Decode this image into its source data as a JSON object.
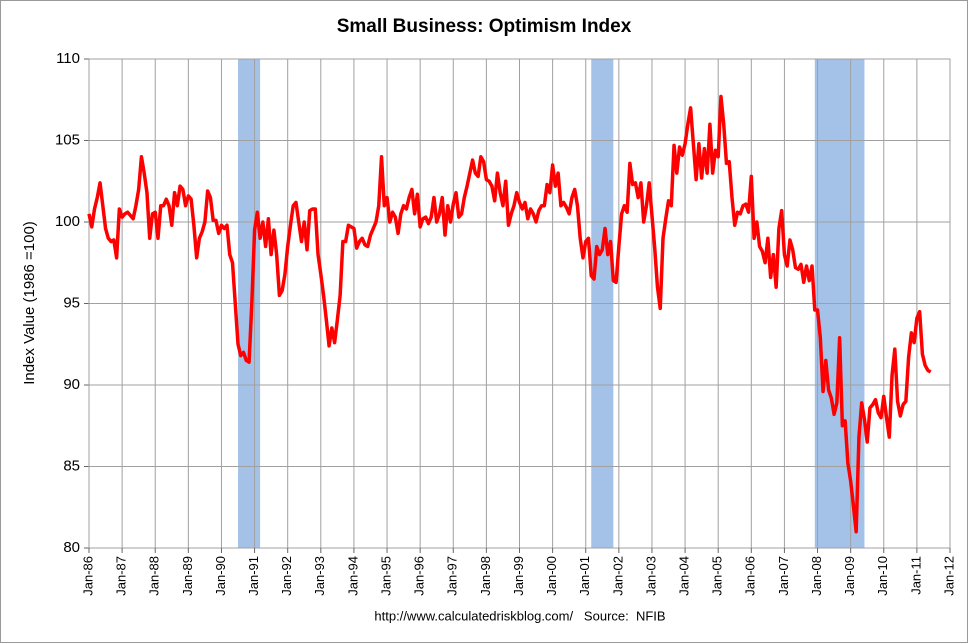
{
  "chart_data": {
    "type": "line",
    "title": "Small Business: Optimism Index",
    "ylabel": "Index Value (1986 =100)",
    "source": "http://www.calculatedriskblog.com/   Source:  NFIB",
    "ylim": [
      80,
      110
    ],
    "yticks": [
      80,
      85,
      90,
      95,
      100,
      105,
      110
    ],
    "xlim": [
      "1986-01",
      "2012-01"
    ],
    "xticks": [
      {
        "value": "1986-01",
        "label": "Jan-86"
      },
      {
        "value": "1987-01",
        "label": "Jan-87"
      },
      {
        "value": "1988-01",
        "label": "Jan-88"
      },
      {
        "value": "1989-01",
        "label": "Jan-89"
      },
      {
        "value": "1990-01",
        "label": "Jan-90"
      },
      {
        "value": "1991-01",
        "label": "Jan-91"
      },
      {
        "value": "1992-01",
        "label": "Jan-92"
      },
      {
        "value": "1993-01",
        "label": "Jan-93"
      },
      {
        "value": "1994-01",
        "label": "Jan-94"
      },
      {
        "value": "1995-01",
        "label": "Jan-95"
      },
      {
        "value": "1996-01",
        "label": "Jan-96"
      },
      {
        "value": "1997-01",
        "label": "Jan-97"
      },
      {
        "value": "1998-01",
        "label": "Jan-98"
      },
      {
        "value": "1999-01",
        "label": "Jan-99"
      },
      {
        "value": "2000-01",
        "label": "Jan-00"
      },
      {
        "value": "2001-01",
        "label": "Jan-01"
      },
      {
        "value": "2002-01",
        "label": "Jan-02"
      },
      {
        "value": "2003-01",
        "label": "Jan-03"
      },
      {
        "value": "2004-01",
        "label": "Jan-04"
      },
      {
        "value": "2005-01",
        "label": "Jan-05"
      },
      {
        "value": "2006-01",
        "label": "Jan-06"
      },
      {
        "value": "2007-01",
        "label": "Jan-07"
      },
      {
        "value": "2008-01",
        "label": "Jan-08"
      },
      {
        "value": "2009-01",
        "label": "Jan-09"
      },
      {
        "value": "2010-01",
        "label": "Jan-10"
      },
      {
        "value": "2011-01",
        "label": "Jan-11"
      },
      {
        "value": "2012-01",
        "label": "Jan-12"
      }
    ],
    "grid": true,
    "recession_color": "#a4c2e8",
    "recessions": [
      {
        "start": "1990-07",
        "end": "1991-03"
      },
      {
        "start": "2001-03",
        "end": "2001-11"
      },
      {
        "start": "2007-12",
        "end": "2009-06"
      }
    ],
    "x": [
      "1986-01",
      "1986-02",
      "1986-03",
      "1986-04",
      "1986-05",
      "1986-06",
      "1986-07",
      "1986-08",
      "1986-09",
      "1986-10",
      "1986-11",
      "1986-12",
      "1987-01",
      "1987-02",
      "1987-03",
      "1987-04",
      "1987-05",
      "1987-06",
      "1987-07",
      "1987-08",
      "1987-09",
      "1987-10",
      "1987-11",
      "1987-12",
      "1988-01",
      "1988-02",
      "1988-03",
      "1988-04",
      "1988-05",
      "1988-06",
      "1988-07",
      "1988-08",
      "1988-09",
      "1988-10",
      "1988-11",
      "1988-12",
      "1989-01",
      "1989-02",
      "1989-03",
      "1989-04",
      "1989-05",
      "1989-06",
      "1989-07",
      "1989-08",
      "1989-09",
      "1989-10",
      "1989-11",
      "1989-12",
      "1990-01",
      "1990-02",
      "1990-03",
      "1990-04",
      "1990-05",
      "1990-06",
      "1990-07",
      "1990-08",
      "1990-09",
      "1990-10",
      "1990-11",
      "1990-12",
      "1991-01",
      "1991-02",
      "1991-03",
      "1991-04",
      "1991-05",
      "1991-06",
      "1991-07",
      "1991-08",
      "1991-09",
      "1991-10",
      "1991-11",
      "1991-12",
      "1992-01",
      "1992-02",
      "1992-03",
      "1992-04",
      "1992-05",
      "1992-06",
      "1992-07",
      "1992-08",
      "1992-09",
      "1992-10",
      "1992-11",
      "1992-12",
      "1993-01",
      "1993-02",
      "1993-03",
      "1993-04",
      "1993-05",
      "1993-06",
      "1993-07",
      "1993-08",
      "1993-09",
      "1993-10",
      "1993-11",
      "1993-12",
      "1994-01",
      "1994-02",
      "1994-03",
      "1994-04",
      "1994-05",
      "1994-06",
      "1994-07",
      "1994-08",
      "1994-09",
      "1994-10",
      "1994-11",
      "1994-12",
      "1995-01",
      "1995-02",
      "1995-03",
      "1995-04",
      "1995-05",
      "1995-06",
      "1995-07",
      "1995-08",
      "1995-09",
      "1995-10",
      "1995-11",
      "1995-12",
      "1996-01",
      "1996-02",
      "1996-03",
      "1996-04",
      "1996-05",
      "1996-06",
      "1996-07",
      "1996-08",
      "1996-09",
      "1996-10",
      "1996-11",
      "1996-12",
      "1997-01",
      "1997-02",
      "1997-03",
      "1997-04",
      "1997-05",
      "1997-06",
      "1997-07",
      "1997-08",
      "1997-09",
      "1997-10",
      "1997-11",
      "1997-12",
      "1998-01",
      "1998-02",
      "1998-03",
      "1998-04",
      "1998-05",
      "1998-06",
      "1998-07",
      "1998-08",
      "1998-09",
      "1998-10",
      "1998-11",
      "1998-12",
      "1999-01",
      "1999-02",
      "1999-03",
      "1999-04",
      "1999-05",
      "1999-06",
      "1999-07",
      "1999-08",
      "1999-09",
      "1999-10",
      "1999-11",
      "1999-12",
      "2000-01",
      "2000-02",
      "2000-03",
      "2000-04",
      "2000-05",
      "2000-06",
      "2000-07",
      "2000-08",
      "2000-09",
      "2000-10",
      "2000-11",
      "2000-12",
      "2001-01",
      "2001-02",
      "2001-03",
      "2001-04",
      "2001-05",
      "2001-06",
      "2001-07",
      "2001-08",
      "2001-09",
      "2001-10",
      "2001-11",
      "2001-12",
      "2002-01",
      "2002-02",
      "2002-03",
      "2002-04",
      "2002-05",
      "2002-06",
      "2002-07",
      "2002-08",
      "2002-09",
      "2002-10",
      "2002-11",
      "2002-12",
      "2003-01",
      "2003-02",
      "2003-03",
      "2003-04",
      "2003-05",
      "2003-06",
      "2003-07",
      "2003-08",
      "2003-09",
      "2003-10",
      "2003-11",
      "2003-12",
      "2004-01",
      "2004-02",
      "2004-03",
      "2004-04",
      "2004-05",
      "2004-06",
      "2004-07",
      "2004-08",
      "2004-09",
      "2004-10",
      "2004-11",
      "2004-12",
      "2005-01",
      "2005-02",
      "2005-03",
      "2005-04",
      "2005-05",
      "2005-06",
      "2005-07",
      "2005-08",
      "2005-09",
      "2005-10",
      "2005-11",
      "2005-12",
      "2006-01",
      "2006-02",
      "2006-03",
      "2006-04",
      "2006-05",
      "2006-06",
      "2006-07",
      "2006-08",
      "2006-09",
      "2006-10",
      "2006-11",
      "2006-12",
      "2007-01",
      "2007-02",
      "2007-03",
      "2007-04",
      "2007-05",
      "2007-06",
      "2007-07",
      "2007-08",
      "2007-09",
      "2007-10",
      "2007-11",
      "2007-12",
      "2008-01",
      "2008-02",
      "2008-03",
      "2008-04",
      "2008-05",
      "2008-06",
      "2008-07",
      "2008-08",
      "2008-09",
      "2008-10",
      "2008-11",
      "2008-12",
      "2009-01",
      "2009-02",
      "2009-03",
      "2009-04",
      "2009-05",
      "2009-06",
      "2009-07",
      "2009-08",
      "2009-09",
      "2009-10",
      "2009-11",
      "2009-12",
      "2010-01",
      "2010-02",
      "2010-03",
      "2010-04",
      "2010-05",
      "2010-06",
      "2010-07",
      "2010-08",
      "2010-09",
      "2010-10",
      "2010-11",
      "2010-12",
      "2011-01",
      "2011-02",
      "2011-03",
      "2011-04",
      "2011-05",
      "2011-06"
    ],
    "series": [
      {
        "name": "Optimism Index",
        "color": "#ff0000",
        "values": [
          100.5,
          99.7,
          100.8,
          101.5,
          102.4,
          101.0,
          99.6,
          99.0,
          98.8,
          98.9,
          97.8,
          100.8,
          100.3,
          100.5,
          100.6,
          100.4,
          100.2,
          101.0,
          102.0,
          104.0,
          103.0,
          101.8,
          99.0,
          100.5,
          100.6,
          99.0,
          101.0,
          101.0,
          101.4,
          101.0,
          99.8,
          101.8,
          101.0,
          102.2,
          102.0,
          101.0,
          101.6,
          101.4,
          99.8,
          97.8,
          99.0,
          99.4,
          100.0,
          101.9,
          101.5,
          100.1,
          100.1,
          99.3,
          99.8,
          99.6,
          99.8,
          98.0,
          97.5,
          95.0,
          92.5,
          91.8,
          92.0,
          91.5,
          91.4,
          95.0,
          99.5,
          100.6,
          99.0,
          100.0,
          98.5,
          100.2,
          98.0,
          99.5,
          98.0,
          95.5,
          95.8,
          96.8,
          98.5,
          99.8,
          101.0,
          101.2,
          100.0,
          98.8,
          100.0,
          98.3,
          100.7,
          100.8,
          100.8,
          98.0,
          96.8,
          95.5,
          94.0,
          92.4,
          93.5,
          92.6,
          94.0,
          95.5,
          98.8,
          98.8,
          99.8,
          99.7,
          99.6,
          98.4,
          98.8,
          99.0,
          98.6,
          98.5,
          99.2,
          99.6,
          100.0,
          101.0,
          104.0,
          101.0,
          101.5,
          100.0,
          100.6,
          100.3,
          99.3,
          100.5,
          101.0,
          100.8,
          101.5,
          102.0,
          100.5,
          101.7,
          99.7,
          100.2,
          100.3,
          99.9,
          100.3,
          101.5,
          100.0,
          100.5,
          101.5,
          99.2,
          101.0,
          100.0,
          101.1,
          101.8,
          100.3,
          100.5,
          101.5,
          102.2,
          103.0,
          103.8,
          103.0,
          102.8,
          104.0,
          103.7,
          102.6,
          102.5,
          102.2,
          101.3,
          103.0,
          101.8,
          101.0,
          102.5,
          99.8,
          100.5,
          101.0,
          101.8,
          101.2,
          100.8,
          101.2,
          100.2,
          100.8,
          100.5,
          100.0,
          100.7,
          101.0,
          101.0,
          102.3,
          101.8,
          103.5,
          102.2,
          103.0,
          101.0,
          101.2,
          100.9,
          100.5,
          101.5,
          102.0,
          101.0,
          99.0,
          97.8,
          98.8,
          99.0,
          96.7,
          96.5,
          98.5,
          98.0,
          98.3,
          99.6,
          98.0,
          98.8,
          96.4,
          96.3,
          98.5,
          100.5,
          101.0,
          100.6,
          103.6,
          102.3,
          102.4,
          101.5,
          102.4,
          100.0,
          101.0,
          102.4,
          100.4,
          98.4,
          96.0,
          94.7,
          99.0,
          100.2,
          101.3,
          101.0,
          104.7,
          103.0,
          104.6,
          104.1,
          104.8,
          106.0,
          107.0,
          104.8,
          102.6,
          104.8,
          102.7,
          104.5,
          103.0,
          106.0,
          103.0,
          104.4,
          104.0,
          107.7,
          106.0,
          103.6,
          103.7,
          101.5,
          99.8,
          100.6,
          100.5,
          101.0,
          101.1,
          100.6,
          102.8,
          99.0,
          100.0,
          98.5,
          98.2,
          97.5,
          99.0,
          96.6,
          98.0,
          96.0,
          99.6,
          100.7,
          98.0,
          97.3,
          98.9,
          98.3,
          97.2,
          97.1,
          97.4,
          96.3,
          97.3,
          96.4,
          97.3,
          94.6,
          94.6,
          92.9,
          89.6,
          91.5,
          89.7,
          89.2,
          88.2,
          88.9,
          92.9,
          87.5,
          87.8,
          85.2,
          84.1,
          82.6,
          81.0,
          86.8,
          88.9,
          87.9,
          86.5,
          88.6,
          88.8,
          89.1,
          88.3,
          88.0,
          89.3,
          88.0,
          86.8,
          90.6,
          92.2,
          89.0,
          88.1,
          88.8,
          89.0,
          91.7,
          93.2,
          92.6,
          94.1,
          94.5,
          91.9,
          91.2,
          90.9,
          90.8
        ]
      }
    ]
  }
}
